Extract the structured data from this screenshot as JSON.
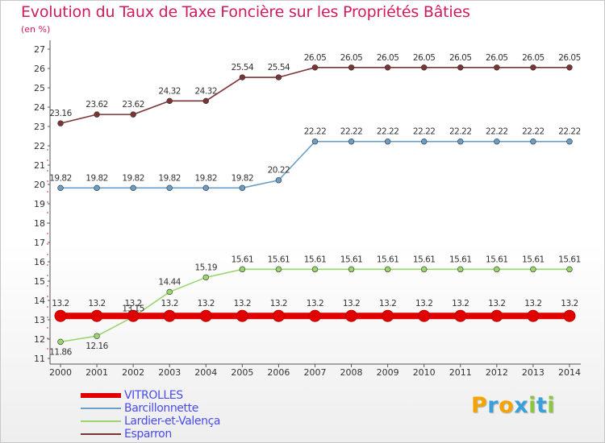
{
  "header": {
    "title": "Evolution du Taux de Taxe Foncière sur les Propriétés Bâties",
    "unit": "(en %)"
  },
  "chart_data": {
    "type": "line",
    "title": "Evolution du Taux de Taxe Foncière sur les Propriétés Bâties",
    "ylabel": "(en %)",
    "xlabel": "",
    "ylim": [
      11,
      27
    ],
    "yticks": [
      11,
      12,
      13,
      14,
      15,
      16,
      17,
      18,
      19,
      20,
      21,
      22,
      23,
      24,
      25,
      26,
      27
    ],
    "categories": [
      "2000",
      "2001",
      "2002",
      "2003",
      "2004",
      "2005",
      "2006",
      "2007",
      "2008",
      "2009",
      "2010",
      "2011",
      "2012",
      "2013",
      "2014"
    ],
    "grid": false,
    "series": [
      {
        "name": "VITROLLES",
        "color": "#e00000",
        "values": [
          13.2,
          13.2,
          13.2,
          13.2,
          13.2,
          13.2,
          13.2,
          13.2,
          13.2,
          13.2,
          13.2,
          13.2,
          13.2,
          13.2,
          13.2
        ],
        "labels": [
          "13.2",
          "13.2",
          "13.2",
          "13.2",
          "13.2",
          "13.2",
          "13.2",
          "13.2",
          "13.2",
          "13.2",
          "13.2",
          "13.2",
          "13.2",
          "13.2",
          "13.2"
        ]
      },
      {
        "name": "Barcillonnette",
        "color": "#6a9ec7",
        "values": [
          19.82,
          19.82,
          19.82,
          19.82,
          19.82,
          19.82,
          20.22,
          22.22,
          22.22,
          22.22,
          22.22,
          22.22,
          22.22,
          22.22,
          22.22
        ],
        "labels": [
          "19.82",
          "19.82",
          "19.82",
          "19.82",
          "19.82",
          "19.82",
          "20.22",
          "22.22",
          "22.22",
          "22.22",
          "22.22",
          "22.22",
          "22.22",
          "22.22",
          "22.22"
        ]
      },
      {
        "name": "Lardier-et-Valença",
        "color": "#9ad56e",
        "values": [
          11.86,
          12.16,
          13.15,
          14.44,
          15.19,
          15.61,
          15.61,
          15.61,
          15.61,
          15.61,
          15.61,
          15.61,
          15.61,
          15.61,
          15.61
        ],
        "labels": [
          "11.86",
          "12.16",
          "13.15",
          "14.44",
          "15.19",
          "15.61",
          "15.61",
          "15.61",
          "15.61",
          "15.61",
          "15.61",
          "15.61",
          "15.61",
          "15.61",
          "15.61"
        ]
      },
      {
        "name": "Esparron",
        "color": "#7a3434",
        "values": [
          23.16,
          23.62,
          23.62,
          24.32,
          24.32,
          25.54,
          25.54,
          26.05,
          26.05,
          26.05,
          26.05,
          26.05,
          26.05,
          26.05,
          26.05
        ],
        "labels": [
          "23.16",
          "23.62",
          "23.62",
          "24.32",
          "24.32",
          "25.54",
          "25.54",
          "26.05",
          "26.05",
          "26.05",
          "26.05",
          "26.05",
          "26.05",
          "26.05",
          "26.05"
        ]
      }
    ],
    "legend": "bottom-left"
  },
  "logo": {
    "letters": [
      "P",
      "r",
      "o",
      "x",
      "i",
      "t",
      "i"
    ],
    "colors": [
      "#f5a300",
      "#3aa0dc",
      "#f5a300",
      "#3aa0dc",
      "#8cc63f",
      "#3aa0dc",
      "#8cc63f"
    ]
  }
}
